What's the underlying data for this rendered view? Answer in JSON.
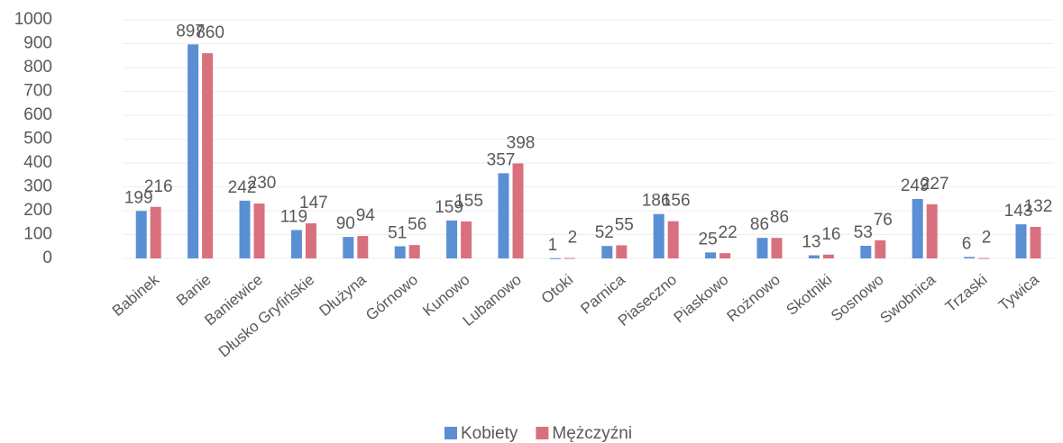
{
  "chart_data": {
    "type": "bar",
    "categories": [
      "Babinek",
      "Banie",
      "Baniewice",
      "Dłusko Gryfińskie",
      "Dłużyna",
      "Górnowo",
      "Kunowo",
      "Lubanowo",
      "Otoki",
      "Parnica",
      "Piaseczno",
      "Piaskowo",
      "Rożnowo",
      "Skotniki",
      "Sosnowo",
      "Swobnica",
      "Trzaski",
      "Tywica"
    ],
    "series": [
      {
        "name": "Kobiety",
        "color": "#5b8fd4",
        "values": [
          199,
          897,
          242,
          119,
          90,
          51,
          159,
          357,
          1,
          52,
          186,
          25,
          86,
          13,
          53,
          249,
          6,
          143
        ]
      },
      {
        "name": "Mężczyźni",
        "color": "#d9707e",
        "values": [
          216,
          860,
          230,
          147,
          94,
          56,
          155,
          398,
          2,
          55,
          156,
          22,
          86,
          16,
          76,
          227,
          2,
          132
        ]
      }
    ],
    "ylim": [
      0,
      1000
    ],
    "yticks": [
      0,
      100,
      200,
      300,
      400,
      500,
      600,
      700,
      800,
      900,
      1000
    ],
    "grid": true,
    "legend": "bottom"
  }
}
